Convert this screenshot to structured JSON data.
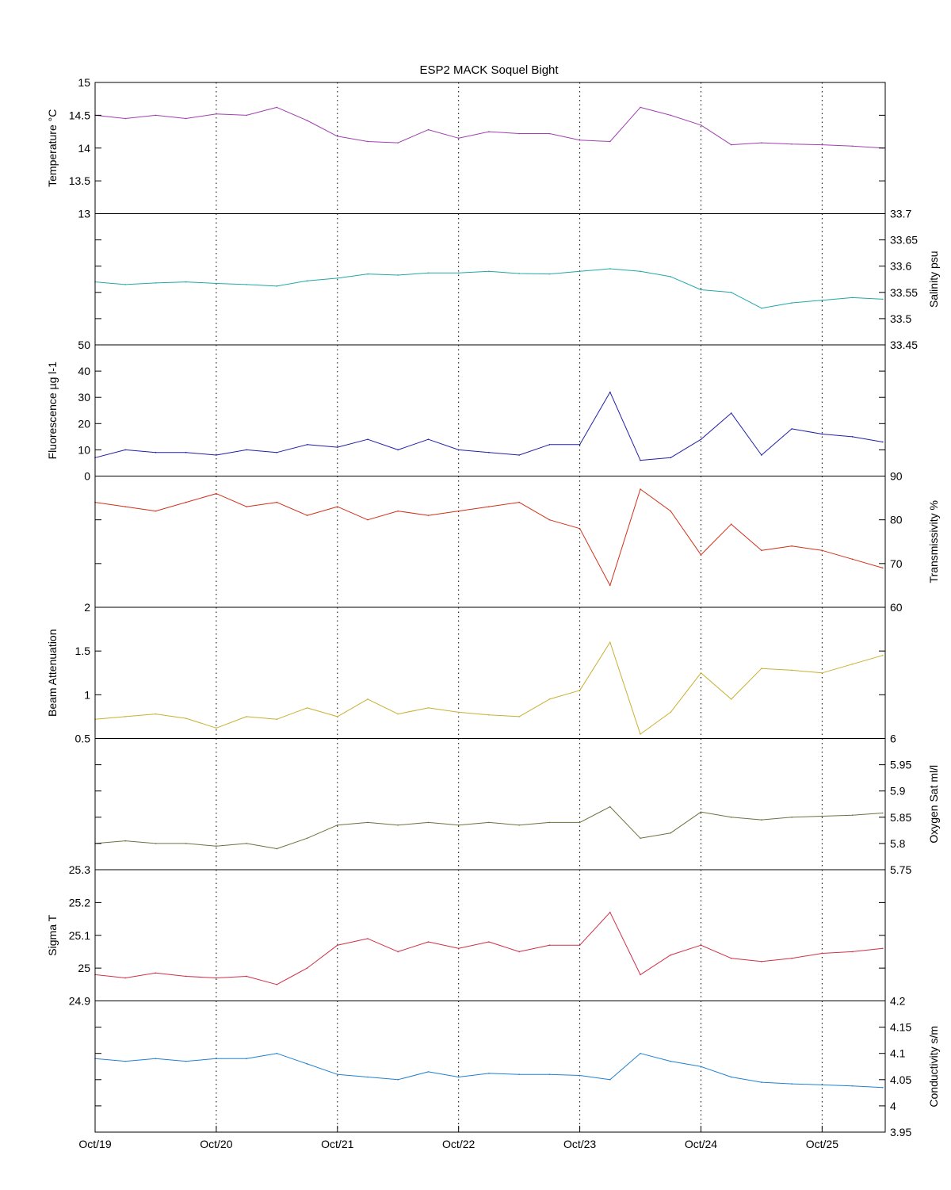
{
  "chart_data": {
    "type": "line",
    "title": "ESP2 MACK  Soquel Bight",
    "x_ticks": [
      "Oct/19",
      "Oct/20",
      "Oct/21",
      "Oct/22",
      "Oct/23",
      "Oct/24",
      "Oct/25"
    ],
    "xlim": [
      "Oct/19",
      "Oct/25 12:30"
    ],
    "grid": "vertical dotted lines at each day",
    "panels": [
      {
        "ylabel": "Temperature °C",
        "ylabel_side": "left",
        "ticks_side": "left",
        "ylim": [
          13,
          15
        ],
        "yticks": [
          "13",
          "13.5",
          "14",
          "14.5",
          "15"
        ],
        "color": "#a040b0",
        "x": [
          "Oct/19 00:00",
          "Oct/19 06:00",
          "Oct/19 12:00",
          "Oct/19 18:00",
          "Oct/20 00:00",
          "Oct/20 06:00",
          "Oct/20 12:00",
          "Oct/20 18:00",
          "Oct/21 00:00",
          "Oct/21 06:00",
          "Oct/21 12:00",
          "Oct/21 18:00",
          "Oct/22 00:00",
          "Oct/22 06:00",
          "Oct/22 12:00",
          "Oct/22 18:00",
          "Oct/23 00:00",
          "Oct/23 06:00",
          "Oct/23 12:00",
          "Oct/23 18:00",
          "Oct/24 00:00",
          "Oct/24 06:00",
          "Oct/24 12:00",
          "Oct/24 18:00",
          "Oct/25 00:00",
          "Oct/25 06:00",
          "Oct/25 12:00"
        ],
        "values": [
          14.5,
          14.45,
          14.5,
          14.45,
          14.52,
          14.5,
          14.62,
          14.42,
          14.18,
          14.1,
          14.08,
          14.28,
          14.15,
          14.25,
          14.22,
          14.22,
          14.12,
          14.1,
          14.62,
          14.5,
          14.35,
          14.05,
          14.08,
          14.06,
          14.05,
          14.03,
          14.0
        ]
      },
      {
        "ylabel": "Salinity psu",
        "ylabel_side": "right",
        "ticks_side": "right",
        "ylim": [
          33.45,
          33.7
        ],
        "yticks": [
          "33.45",
          "33.5",
          "33.55",
          "33.6",
          "33.65",
          "33.7"
        ],
        "color": "#20a8a8",
        "x": [
          "Oct/19 00:00",
          "Oct/19 06:00",
          "Oct/19 12:00",
          "Oct/19 18:00",
          "Oct/20 00:00",
          "Oct/20 06:00",
          "Oct/20 12:00",
          "Oct/20 18:00",
          "Oct/21 00:00",
          "Oct/21 06:00",
          "Oct/21 12:00",
          "Oct/21 18:00",
          "Oct/22 00:00",
          "Oct/22 06:00",
          "Oct/22 12:00",
          "Oct/22 18:00",
          "Oct/23 00:00",
          "Oct/23 06:00",
          "Oct/23 12:00",
          "Oct/23 18:00",
          "Oct/24 00:00",
          "Oct/24 06:00",
          "Oct/24 12:00",
          "Oct/24 18:00",
          "Oct/25 00:00",
          "Oct/25 06:00",
          "Oct/25 12:00"
        ],
        "values": [
          33.57,
          33.565,
          33.568,
          33.57,
          33.567,
          33.565,
          33.562,
          33.572,
          33.577,
          33.585,
          33.583,
          33.587,
          33.587,
          33.59,
          33.586,
          33.585,
          33.59,
          33.595,
          33.59,
          33.58,
          33.555,
          33.55,
          33.52,
          33.53,
          33.535,
          33.54,
          33.537
        ]
      },
      {
        "ylabel": "Fluorescence µg l-1",
        "ylabel_side": "left",
        "ticks_side": "left",
        "ylim": [
          0,
          50
        ],
        "yticks": [
          "0",
          "10",
          "20",
          "30",
          "40",
          "50"
        ],
        "color": "#2020a8",
        "x": [
          "Oct/19 00:00",
          "Oct/19 06:00",
          "Oct/19 12:00",
          "Oct/19 18:00",
          "Oct/20 00:00",
          "Oct/20 06:00",
          "Oct/20 12:00",
          "Oct/20 18:00",
          "Oct/21 00:00",
          "Oct/21 06:00",
          "Oct/21 12:00",
          "Oct/21 18:00",
          "Oct/22 00:00",
          "Oct/22 06:00",
          "Oct/22 12:00",
          "Oct/22 18:00",
          "Oct/23 00:00",
          "Oct/23 06:00",
          "Oct/23 12:00",
          "Oct/23 18:00",
          "Oct/24 00:00",
          "Oct/24 06:00",
          "Oct/24 12:00",
          "Oct/24 18:00",
          "Oct/25 00:00",
          "Oct/25 06:00",
          "Oct/25 12:00"
        ],
        "values": [
          7,
          10,
          9,
          9,
          8,
          10,
          9,
          12,
          11,
          14,
          10,
          14,
          10,
          9,
          8,
          12,
          12,
          32,
          6,
          7,
          14,
          24,
          8,
          18,
          16,
          15,
          13
        ]
      },
      {
        "ylabel": "Transmissivity %",
        "ylabel_side": "right",
        "ticks_side": "right",
        "ylim": [
          60,
          90
        ],
        "yticks": [
          "60",
          "70",
          "80",
          "90"
        ],
        "color": "#d03018",
        "x": [
          "Oct/19 00:00",
          "Oct/19 06:00",
          "Oct/19 12:00",
          "Oct/19 18:00",
          "Oct/20 00:00",
          "Oct/20 06:00",
          "Oct/20 12:00",
          "Oct/20 18:00",
          "Oct/21 00:00",
          "Oct/21 06:00",
          "Oct/21 12:00",
          "Oct/21 18:00",
          "Oct/22 00:00",
          "Oct/22 06:00",
          "Oct/22 12:00",
          "Oct/22 18:00",
          "Oct/23 00:00",
          "Oct/23 06:00",
          "Oct/23 12:00",
          "Oct/23 18:00",
          "Oct/24 00:00",
          "Oct/24 06:00",
          "Oct/24 12:00",
          "Oct/24 18:00",
          "Oct/25 00:00",
          "Oct/25 06:00",
          "Oct/25 12:00"
        ],
        "values": [
          84,
          83,
          82,
          84,
          86,
          83,
          84,
          81,
          83,
          80,
          82,
          81,
          82,
          83,
          84,
          80,
          78,
          65,
          87,
          82,
          72,
          79,
          73,
          74,
          73,
          71,
          69
        ]
      },
      {
        "ylabel": "Beam Attenuation",
        "ylabel_side": "left",
        "ticks_side": "left",
        "ylim": [
          0.5,
          2
        ],
        "yticks": [
          "0.5",
          "1",
          "1.5",
          "2"
        ],
        "color": "#c8b030",
        "x": [
          "Oct/19 00:00",
          "Oct/19 06:00",
          "Oct/19 12:00",
          "Oct/19 18:00",
          "Oct/20 00:00",
          "Oct/20 06:00",
          "Oct/20 12:00",
          "Oct/20 18:00",
          "Oct/21 00:00",
          "Oct/21 06:00",
          "Oct/21 12:00",
          "Oct/21 18:00",
          "Oct/22 00:00",
          "Oct/22 06:00",
          "Oct/22 12:00",
          "Oct/22 18:00",
          "Oct/23 00:00",
          "Oct/23 06:00",
          "Oct/23 12:00",
          "Oct/23 18:00",
          "Oct/24 00:00",
          "Oct/24 06:00",
          "Oct/24 12:00",
          "Oct/24 18:00",
          "Oct/25 00:00",
          "Oct/25 06:00",
          "Oct/25 12:00"
        ],
        "values": [
          0.72,
          0.75,
          0.78,
          0.73,
          0.62,
          0.75,
          0.72,
          0.85,
          0.75,
          0.95,
          0.78,
          0.85,
          0.8,
          0.77,
          0.75,
          0.95,
          1.05,
          1.6,
          0.55,
          0.8,
          1.25,
          0.95,
          1.3,
          1.28,
          1.25,
          1.35,
          1.45
        ]
      },
      {
        "ylabel": "Oxygen Sat ml/l",
        "ylabel_side": "right",
        "ticks_side": "right",
        "ylim": [
          5.75,
          6
        ],
        "yticks": [
          "5.75",
          "5.8",
          "5.85",
          "5.9",
          "5.95",
          "6"
        ],
        "color": "#707040",
        "x": [
          "Oct/19 00:00",
          "Oct/19 06:00",
          "Oct/19 12:00",
          "Oct/19 18:00",
          "Oct/20 00:00",
          "Oct/20 06:00",
          "Oct/20 12:00",
          "Oct/20 18:00",
          "Oct/21 00:00",
          "Oct/21 06:00",
          "Oct/21 12:00",
          "Oct/21 18:00",
          "Oct/22 00:00",
          "Oct/22 06:00",
          "Oct/22 12:00",
          "Oct/22 18:00",
          "Oct/23 00:00",
          "Oct/23 06:00",
          "Oct/23 12:00",
          "Oct/23 18:00",
          "Oct/24 00:00",
          "Oct/24 06:00",
          "Oct/24 12:00",
          "Oct/24 18:00",
          "Oct/25 00:00",
          "Oct/25 06:00",
          "Oct/25 12:00"
        ],
        "values": [
          5.8,
          5.805,
          5.8,
          5.8,
          5.795,
          5.8,
          5.79,
          5.81,
          5.835,
          5.84,
          5.835,
          5.84,
          5.835,
          5.84,
          5.835,
          5.84,
          5.84,
          5.87,
          5.81,
          5.82,
          5.86,
          5.85,
          5.845,
          5.85,
          5.852,
          5.854,
          5.858
        ]
      },
      {
        "ylabel": "Sigma T",
        "ylabel_side": "left",
        "ticks_side": "left",
        "ylim": [
          24.9,
          25.3
        ],
        "yticks": [
          "24.9",
          "25",
          "25.1",
          "25.2",
          "25.3"
        ],
        "color": "#d03048",
        "x": [
          "Oct/19 00:00",
          "Oct/19 06:00",
          "Oct/19 12:00",
          "Oct/19 18:00",
          "Oct/20 00:00",
          "Oct/20 06:00",
          "Oct/20 12:00",
          "Oct/20 18:00",
          "Oct/21 00:00",
          "Oct/21 06:00",
          "Oct/21 12:00",
          "Oct/21 18:00",
          "Oct/22 00:00",
          "Oct/22 06:00",
          "Oct/22 12:00",
          "Oct/22 18:00",
          "Oct/23 00:00",
          "Oct/23 06:00",
          "Oct/23 12:00",
          "Oct/23 18:00",
          "Oct/24 00:00",
          "Oct/24 06:00",
          "Oct/24 12:00",
          "Oct/24 18:00",
          "Oct/25 00:00",
          "Oct/25 06:00",
          "Oct/25 12:00"
        ],
        "values": [
          24.98,
          24.97,
          24.985,
          24.975,
          24.97,
          24.975,
          24.95,
          25.0,
          25.07,
          25.09,
          25.05,
          25.08,
          25.06,
          25.08,
          25.05,
          25.07,
          25.07,
          25.17,
          24.98,
          25.04,
          25.07,
          25.03,
          25.02,
          25.03,
          25.045,
          25.05,
          25.06
        ]
      },
      {
        "ylabel": "Conductivity s/m",
        "ylabel_side": "right",
        "ticks_side": "right",
        "ylim": [
          3.95,
          4.2
        ],
        "yticks": [
          "3.95",
          "4",
          "4.05",
          "4.1",
          "4.15",
          "4.2"
        ],
        "color": "#2080d0",
        "x": [
          "Oct/19 00:00",
          "Oct/19 06:00",
          "Oct/19 12:00",
          "Oct/19 18:00",
          "Oct/20 00:00",
          "Oct/20 06:00",
          "Oct/20 12:00",
          "Oct/20 18:00",
          "Oct/21 00:00",
          "Oct/21 06:00",
          "Oct/21 12:00",
          "Oct/21 18:00",
          "Oct/22 00:00",
          "Oct/22 06:00",
          "Oct/22 12:00",
          "Oct/22 18:00",
          "Oct/23 00:00",
          "Oct/23 06:00",
          "Oct/23 12:00",
          "Oct/23 18:00",
          "Oct/24 00:00",
          "Oct/24 06:00",
          "Oct/24 12:00",
          "Oct/24 18:00",
          "Oct/25 00:00",
          "Oct/25 06:00",
          "Oct/25 12:00"
        ],
        "values": [
          4.09,
          4.085,
          4.09,
          4.085,
          4.09,
          4.09,
          4.1,
          4.08,
          4.06,
          4.055,
          4.05,
          4.065,
          4.055,
          4.062,
          4.06,
          4.06,
          4.058,
          4.05,
          4.1,
          4.085,
          4.075,
          4.055,
          4.045,
          4.042,
          4.04,
          4.038,
          4.035
        ]
      }
    ]
  }
}
